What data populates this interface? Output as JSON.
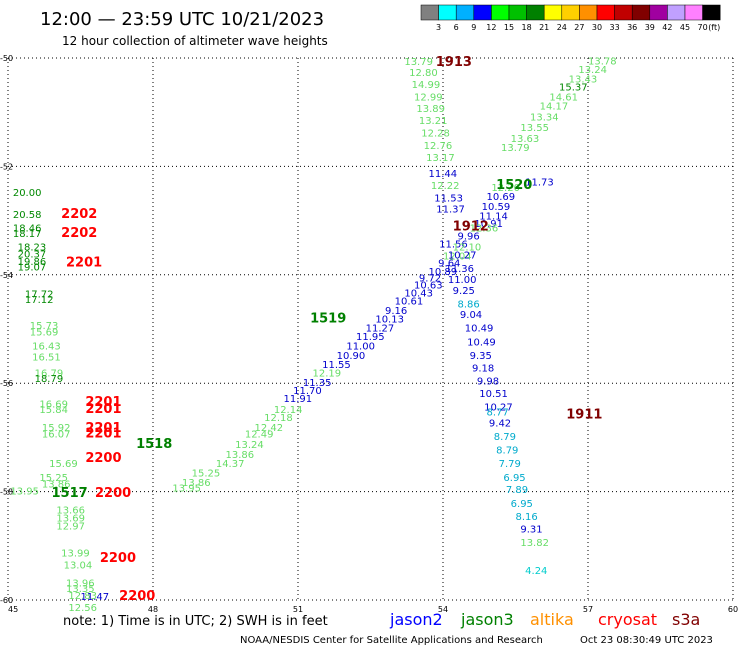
{
  "header": {
    "title": "12:00 — 23:59 UTC 10/21/2023",
    "subtitle": "12 hour collection of altimeter wave heights"
  },
  "colorbar": {
    "unit": "(ft)",
    "labels": [
      "3",
      "6",
      "9",
      "12",
      "15",
      "18",
      "21",
      "24",
      "27",
      "30",
      "33",
      "36",
      "39",
      "42",
      "45",
      "70"
    ],
    "colors": [
      "#808080",
      "#00ffff",
      "#00b0ff",
      "#0000ff",
      "#00ff00",
      "#00c000",
      "#008000",
      "#ffff00",
      "#ffd000",
      "#ff9000",
      "#ff0000",
      "#c00000",
      "#800000",
      "#a000a0",
      "#c0a0ff",
      "#ff80ff",
      "#000000"
    ]
  },
  "footer": {
    "note": "note: 1) Time is in UTC; 2) SWH is in feet",
    "credit": "NOAA/NESDIS Center for Satellite Applications and Research",
    "timestamp": "Oct 23 08:30:49 UTC 2023",
    "satellites": [
      {
        "name": "jason2",
        "color": "#0000ff"
      },
      {
        "name": "jason3",
        "color": "#008000"
      },
      {
        "name": "altika",
        "color": "#ff9000"
      },
      {
        "name": "cryosat",
        "color": "#ff0000"
      },
      {
        "name": "s3a",
        "color": "#800000"
      }
    ]
  },
  "chart_data": {
    "type": "scatter",
    "title": "12:00 — 23:59 UTC 10/21/2023",
    "xlim": [
      45,
      60
    ],
    "ylim": [
      -60,
      -50
    ],
    "x_ticks": [
      45,
      48,
      51,
      54,
      57,
      60
    ],
    "y_ticks": [
      -50,
      -52,
      -54,
      -56,
      -58,
      -60
    ],
    "grid": true,
    "points": [
      {
        "x": 53.2,
        "y": -50.13,
        "v": "13.79",
        "c": "#66dd66"
      },
      {
        "x": 53.3,
        "y": -50.33,
        "v": "12.80",
        "c": "#66dd66"
      },
      {
        "x": 53.35,
        "y": -50.55,
        "v": "14.99",
        "c": "#66dd66"
      },
      {
        "x": 53.4,
        "y": -50.78,
        "v": "12.99",
        "c": "#66dd66"
      },
      {
        "x": 53.45,
        "y": -51.0,
        "v": "13.89",
        "c": "#66dd66"
      },
      {
        "x": 53.5,
        "y": -51.22,
        "v": "13.21",
        "c": "#66dd66"
      },
      {
        "x": 53.55,
        "y": -51.45,
        "v": "12.28",
        "c": "#66dd66"
      },
      {
        "x": 53.6,
        "y": -51.68,
        "v": "12.76",
        "c": "#66dd66"
      },
      {
        "x": 53.65,
        "y": -51.9,
        "v": "13.17",
        "c": "#66dd66"
      },
      {
        "x": 53.7,
        "y": -52.2,
        "v": "11.44",
        "c": "#0000cc"
      },
      {
        "x": 53.75,
        "y": -52.42,
        "v": "12.22",
        "c": "#66dd66"
      },
      {
        "x": 53.82,
        "y": -52.65,
        "v": "11.53",
        "c": "#0000cc"
      },
      {
        "x": 53.86,
        "y": -52.85,
        "v": "11.37",
        "c": "#0000cc"
      },
      {
        "x": 53.92,
        "y": -53.5,
        "v": "11.56",
        "c": "#0000cc"
      },
      {
        "x": 54.0,
        "y": -53.72,
        "v": "12.04",
        "c": "#66dd66"
      },
      {
        "x": 54.05,
        "y": -53.95,
        "v": "11.36",
        "c": "#0000cc"
      },
      {
        "x": 54.1,
        "y": -54.15,
        "v": "11.00",
        "c": "#0000cc"
      },
      {
        "x": 54.2,
        "y": -54.35,
        "v": "9.25",
        "c": "#0000cc"
      },
      {
        "x": 54.3,
        "y": -54.6,
        "v": "8.86",
        "c": "#00aacc"
      },
      {
        "x": 54.35,
        "y": -54.8,
        "v": "9.04",
        "c": "#0000cc"
      },
      {
        "x": 54.45,
        "y": -55.05,
        "v": "10.49",
        "c": "#0000cc"
      },
      {
        "x": 54.5,
        "y": -55.3,
        "v": "10.49",
        "c": "#0000cc"
      },
      {
        "x": 54.55,
        "y": -55.55,
        "v": "9.35",
        "c": "#0000cc"
      },
      {
        "x": 54.6,
        "y": -55.78,
        "v": "9.18",
        "c": "#0000cc"
      },
      {
        "x": 54.7,
        "y": -56.02,
        "v": "9.98",
        "c": "#0000cc"
      },
      {
        "x": 54.75,
        "y": -56.25,
        "v": "10.51",
        "c": "#0000cc"
      },
      {
        "x": 54.85,
        "y": -56.5,
        "v": "10.27",
        "c": "#0000cc"
      },
      {
        "x": 54.9,
        "y": -56.6,
        "v": "8.77",
        "c": "#00aacc"
      },
      {
        "x": 54.95,
        "y": -56.8,
        "v": "9.42",
        "c": "#0000cc"
      },
      {
        "x": 55.05,
        "y": -57.05,
        "v": "8.79",
        "c": "#00aacc"
      },
      {
        "x": 55.1,
        "y": -57.3,
        "v": "8.79",
        "c": "#00aacc"
      },
      {
        "x": 55.15,
        "y": -57.55,
        "v": "7.79",
        "c": "#00aacc"
      },
      {
        "x": 55.25,
        "y": -57.8,
        "v": "6.95",
        "c": "#00aacc"
      },
      {
        "x": 55.3,
        "y": -58.03,
        "v": "7.89",
        "c": "#00aacc"
      },
      {
        "x": 55.4,
        "y": -58.28,
        "v": "6.95",
        "c": "#00aacc"
      },
      {
        "x": 55.5,
        "y": -58.52,
        "v": "8.16",
        "c": "#00aacc"
      },
      {
        "x": 55.6,
        "y": -58.75,
        "v": "9.31",
        "c": "#0000cc"
      },
      {
        "x": 55.6,
        "y": -59.0,
        "v": "13.82",
        "c": "#66dd66"
      },
      {
        "x": 55.7,
        "y": -59.52,
        "v": "4.24",
        "c": "#00cccc"
      },
      {
        "x": 55.7,
        "y": -52.35,
        "v": "11.73",
        "c": "#0000cc"
      },
      {
        "x": 55.0,
        "y": -52.45,
        "v": "12.20",
        "c": "#66dd66"
      },
      {
        "x": 54.9,
        "y": -52.62,
        "v": "10.69",
        "c": "#0000cc"
      },
      {
        "x": 54.8,
        "y": -52.8,
        "v": "10.59",
        "c": "#0000cc"
      },
      {
        "x": 54.75,
        "y": -52.98,
        "v": "11.14",
        "c": "#0000cc"
      },
      {
        "x": 54.65,
        "y": -53.12,
        "v": "10.91",
        "c": "#0000cc"
      },
      {
        "x": 54.55,
        "y": -53.2,
        "v": "12.36",
        "c": "#66dd66"
      },
      {
        "x": 54.3,
        "y": -53.35,
        "v": "9.96",
        "c": "#0000cc"
      },
      {
        "x": 54.2,
        "y": -53.55,
        "v": "12.10",
        "c": "#66dd66"
      },
      {
        "x": 54.1,
        "y": -53.7,
        "v": "10.27",
        "c": "#0000cc"
      },
      {
        "x": 53.9,
        "y": -53.85,
        "v": "9.64",
        "c": "#0000cc"
      },
      {
        "x": 53.7,
        "y": -54.0,
        "v": "10.89",
        "c": "#0000cc"
      },
      {
        "x": 53.5,
        "y": -54.12,
        "v": "9.72",
        "c": "#0000cc"
      },
      {
        "x": 53.4,
        "y": -54.25,
        "v": "10.63",
        "c": "#0000cc"
      },
      {
        "x": 53.2,
        "y": -54.4,
        "v": "10.43",
        "c": "#0000cc"
      },
      {
        "x": 53.0,
        "y": -54.55,
        "v": "10.61",
        "c": "#0000cc"
      },
      {
        "x": 52.8,
        "y": -54.72,
        "v": "9.16",
        "c": "#0000cc"
      },
      {
        "x": 52.6,
        "y": -54.88,
        "v": "10.13",
        "c": "#0000cc"
      },
      {
        "x": 52.4,
        "y": -55.05,
        "v": "11.27",
        "c": "#0000cc"
      },
      {
        "x": 52.2,
        "y": -55.2,
        "v": "11.95",
        "c": "#0000cc"
      },
      {
        "x": 52.0,
        "y": -55.38,
        "v": "11.00",
        "c": "#0000cc"
      },
      {
        "x": 51.8,
        "y": -55.55,
        "v": "10.90",
        "c": "#0000cc"
      },
      {
        "x": 51.5,
        "y": -55.72,
        "v": "11.55",
        "c": "#0000cc"
      },
      {
        "x": 51.3,
        "y": -55.88,
        "v": "12.19",
        "c": "#66dd66"
      },
      {
        "x": 51.1,
        "y": -56.05,
        "v": "11.35",
        "c": "#0000cc"
      },
      {
        "x": 50.9,
        "y": -56.2,
        "v": "11.70",
        "c": "#0000cc"
      },
      {
        "x": 50.7,
        "y": -56.35,
        "v": "11.91",
        "c": "#0000cc"
      },
      {
        "x": 50.5,
        "y": -56.55,
        "v": "12.14",
        "c": "#66dd66"
      },
      {
        "x": 50.3,
        "y": -56.7,
        "v": "12.18",
        "c": "#66dd66"
      },
      {
        "x": 50.1,
        "y": -56.88,
        "v": "12.42",
        "c": "#66dd66"
      },
      {
        "x": 49.9,
        "y": -57.0,
        "v": "12.49",
        "c": "#66dd66"
      },
      {
        "x": 49.7,
        "y": -57.2,
        "v": "13.24",
        "c": "#66dd66"
      },
      {
        "x": 49.5,
        "y": -57.38,
        "v": "13.86",
        "c": "#66dd66"
      },
      {
        "x": 49.3,
        "y": -57.55,
        "v": "14.37",
        "c": "#66dd66"
      },
      {
        "x": 48.8,
        "y": -57.72,
        "v": "15.25",
        "c": "#66dd66"
      },
      {
        "x": 48.6,
        "y": -57.9,
        "v": "13.86",
        "c": "#66dd66"
      },
      {
        "x": 48.4,
        "y": -58.0,
        "v": "13.95",
        "c": "#66dd66"
      },
      {
        "x": 55.2,
        "y": -51.72,
        "v": "13.79",
        "c": "#66dd66"
      },
      {
        "x": 55.4,
        "y": -51.55,
        "v": "13.63",
        "c": "#66dd66"
      },
      {
        "x": 55.6,
        "y": -51.35,
        "v": "13.55",
        "c": "#66dd66"
      },
      {
        "x": 55.8,
        "y": -51.15,
        "v": "13.34",
        "c": "#66dd66"
      },
      {
        "x": 56.0,
        "y": -50.95,
        "v": "14.17",
        "c": "#66dd66"
      },
      {
        "x": 56.2,
        "y": -50.78,
        "v": "14.61",
        "c": "#66dd66"
      },
      {
        "x": 56.4,
        "y": -50.6,
        "v": "15.37",
        "c": "#008800"
      },
      {
        "x": 56.6,
        "y": -50.45,
        "v": "13.43",
        "c": "#66dd66"
      },
      {
        "x": 56.8,
        "y": -50.28,
        "v": "13.24",
        "c": "#66dd66"
      },
      {
        "x": 57.0,
        "y": -50.12,
        "v": "13.78",
        "c": "#66dd66"
      },
      {
        "x": 45.1,
        "y": -52.55,
        "v": "20.00",
        "c": "#008800"
      },
      {
        "x": 45.1,
        "y": -52.95,
        "v": "20.58",
        "c": "#008800"
      },
      {
        "x": 45.1,
        "y": -53.2,
        "v": "18.46",
        "c": "#008800"
      },
      {
        "x": 45.1,
        "y": -53.3,
        "v": "18.17",
        "c": "#008800"
      },
      {
        "x": 45.2,
        "y": -53.55,
        "v": "18.23",
        "c": "#008800"
      },
      {
        "x": 45.2,
        "y": -53.68,
        "v": "20.37",
        "c": "#008800"
      },
      {
        "x": 45.2,
        "y": -53.82,
        "v": "19.86",
        "c": "#008800"
      },
      {
        "x": 45.2,
        "y": -53.92,
        "v": "19.07",
        "c": "#008800"
      },
      {
        "x": 45.35,
        "y": -54.42,
        "v": "17.72",
        "c": "#008800"
      },
      {
        "x": 45.35,
        "y": -54.52,
        "v": "17.12",
        "c": "#008800"
      },
      {
        "x": 45.45,
        "y": -55.0,
        "v": "15.73",
        "c": "#66dd66"
      },
      {
        "x": 45.45,
        "y": -55.12,
        "v": "15.69",
        "c": "#66dd66"
      },
      {
        "x": 45.5,
        "y": -55.38,
        "v": "16.43",
        "c": "#66dd66"
      },
      {
        "x": 45.5,
        "y": -55.58,
        "v": "16.51",
        "c": "#66dd66"
      },
      {
        "x": 45.55,
        "y": -55.88,
        "v": "16.79",
        "c": "#66dd66"
      },
      {
        "x": 45.55,
        "y": -55.98,
        "v": "18.79",
        "c": "#008800"
      },
      {
        "x": 45.65,
        "y": -56.45,
        "v": "16.69",
        "c": "#66dd66"
      },
      {
        "x": 45.65,
        "y": -56.55,
        "v": "15.84",
        "c": "#66dd66"
      },
      {
        "x": 45.7,
        "y": -56.88,
        "v": "15.92",
        "c": "#66dd66"
      },
      {
        "x": 45.7,
        "y": -57.0,
        "v": "16.07",
        "c": "#66dd66"
      },
      {
        "x": 45.85,
        "y": -57.55,
        "v": "15.69",
        "c": "#66dd66"
      },
      {
        "x": 45.65,
        "y": -57.8,
        "v": "15.25",
        "c": "#66dd66"
      },
      {
        "x": 45.7,
        "y": -57.92,
        "v": "13.86",
        "c": "#66dd66"
      },
      {
        "x": 45.05,
        "y": -58.05,
        "v": "13.95",
        "c": "#66dd66"
      },
      {
        "x": 46.0,
        "y": -58.4,
        "v": "13.66",
        "c": "#66dd66"
      },
      {
        "x": 46.0,
        "y": -58.55,
        "v": "13.69",
        "c": "#66dd66"
      },
      {
        "x": 46.0,
        "y": -58.7,
        "v": "12.97",
        "c": "#66dd66"
      },
      {
        "x": 46.1,
        "y": -59.2,
        "v": "13.99",
        "c": "#66dd66"
      },
      {
        "x": 46.15,
        "y": -59.42,
        "v": "13.04",
        "c": "#66dd66"
      },
      {
        "x": 46.2,
        "y": -59.75,
        "v": "13.96",
        "c": "#66dd66"
      },
      {
        "x": 46.2,
        "y": -59.85,
        "v": "13.35",
        "c": "#66dd66"
      },
      {
        "x": 46.25,
        "y": -59.98,
        "v": "12.83",
        "c": "#66dd66"
      },
      {
        "x": 46.25,
        "y": -60.2,
        "v": "12.56",
        "c": "#66dd66"
      },
      {
        "x": 46.5,
        "y": -60.0,
        "v": "11.47",
        "c": "#0000cc"
      }
    ],
    "time_labels": [
      {
        "x": 53.85,
        "y": -50.15,
        "t": "1913",
        "c": "#800000"
      },
      {
        "x": 55.1,
        "y": -52.42,
        "t": "1520",
        "c": "#008000"
      },
      {
        "x": 54.2,
        "y": -53.18,
        "t": "1912",
        "c": "#800000"
      },
      {
        "x": 51.25,
        "y": -54.88,
        "t": "1519",
        "c": "#008000"
      },
      {
        "x": 56.55,
        "y": -56.65,
        "t": "1911",
        "c": "#800000"
      },
      {
        "x": 47.65,
        "y": -57.2,
        "t": "1518",
        "c": "#008000"
      },
      {
        "x": 45.9,
        "y": -58.1,
        "t": "1517",
        "c": "#008000"
      },
      {
        "x": 46.1,
        "y": -52.95,
        "t": "2202",
        "c": "#ff0000"
      },
      {
        "x": 46.1,
        "y": -53.3,
        "t": "2202",
        "c": "#ff0000"
      },
      {
        "x": 46.2,
        "y": -53.85,
        "t": "2201",
        "c": "#ff0000"
      },
      {
        "x": 46.6,
        "y": -56.42,
        "t": "2201",
        "c": "#ff0000"
      },
      {
        "x": 46.6,
        "y": -56.55,
        "t": "2201",
        "c": "#ff0000"
      },
      {
        "x": 46.6,
        "y": -56.9,
        "t": "2201",
        "c": "#ff0000"
      },
      {
        "x": 46.6,
        "y": -57.0,
        "t": "2201",
        "c": "#ff0000"
      },
      {
        "x": 46.6,
        "y": -57.45,
        "t": "2200",
        "c": "#ff0000"
      },
      {
        "x": 46.8,
        "y": -58.1,
        "t": "2200",
        "c": "#ff0000"
      },
      {
        "x": 46.9,
        "y": -59.3,
        "t": "2200",
        "c": "#ff0000"
      },
      {
        "x": 47.3,
        "y": -60.0,
        "t": "2200",
        "c": "#ff0000"
      }
    ]
  }
}
